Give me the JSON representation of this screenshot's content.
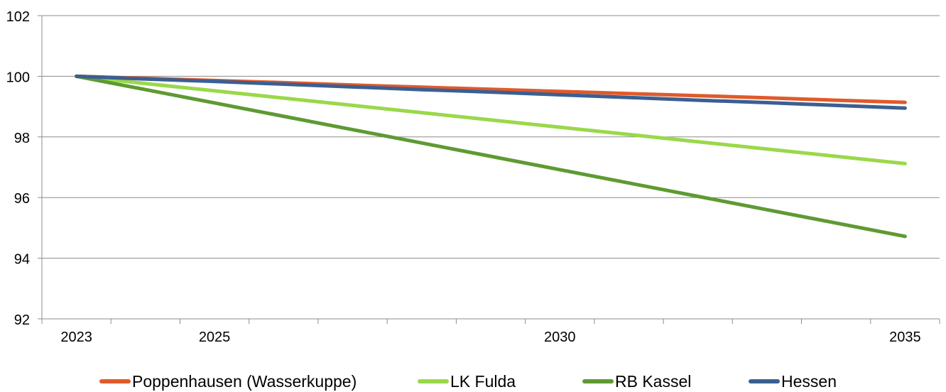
{
  "chart_data": {
    "type": "line",
    "x": [
      "2023",
      "2024",
      "2025",
      "2026",
      "2027",
      "2028",
      "2029",
      "2030",
      "2031",
      "2032",
      "2033",
      "2034",
      "2035"
    ],
    "x_tick_labels": [
      "2023",
      "",
      "2025",
      "",
      "",
      "",
      "",
      "2030",
      "",
      "",
      "",
      "",
      "2035"
    ],
    "y_ticks": [
      "92",
      "94",
      "96",
      "98",
      "100",
      "102"
    ],
    "ylim": [
      92,
      102
    ],
    "grid": "horizontal",
    "legend_position": "bottom",
    "title": "",
    "xlabel": "",
    "ylabel": "",
    "series": [
      {
        "name": "Poppenhausen (Wasserkuppe)",
        "color": "#e05a2b",
        "values": [
          100,
          99.93,
          99.86,
          99.79,
          99.71,
          99.64,
          99.57,
          99.5,
          99.43,
          99.36,
          99.29,
          99.21,
          99.14
        ]
      },
      {
        "name": "LK Fulda",
        "color": "#9ad84a",
        "values": [
          100,
          99.76,
          99.52,
          99.28,
          99.04,
          98.8,
          98.56,
          98.32,
          98.08,
          97.84,
          97.6,
          97.36,
          97.12
        ]
      },
      {
        "name": "RB Kassel",
        "color": "#5e9a32",
        "values": [
          100,
          99.56,
          99.12,
          98.68,
          98.24,
          97.8,
          97.36,
          96.92,
          96.48,
          96.04,
          95.6,
          95.16,
          94.72
        ]
      },
      {
        "name": "Hessen",
        "color": "#3a5f92",
        "values": [
          100,
          99.91,
          99.83,
          99.74,
          99.65,
          99.56,
          99.48,
          99.39,
          99.3,
          99.21,
          99.13,
          99.04,
          98.95
        ]
      }
    ]
  }
}
